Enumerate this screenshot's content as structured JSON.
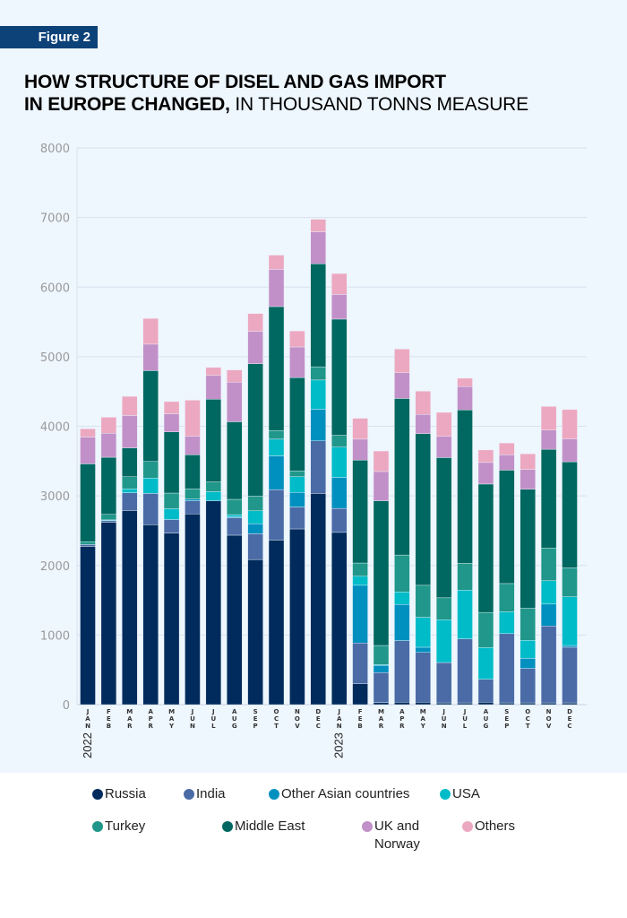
{
  "figure_label": "Figure 2",
  "title": {
    "bold": "HOW STRUCTURE OF DISEL AND GAS IMPORT IN EUROPE CHANGED,",
    "bold_line1": "HOW STRUCTURE OF DISEL AND GAS IMPORT",
    "bold_line2": "IN EUROPE CHANGED,",
    "light": " IN THOUSAND TONNS MEASURE"
  },
  "chart_data": {
    "type": "bar",
    "stacked": true,
    "title": "HOW STRUCTURE OF DISEL AND GAS IMPORT IN EUROPE CHANGED, IN THOUSAND TONNS MEASURE",
    "ylim": [
      0,
      8000
    ],
    "yticks": [
      "0",
      "1000",
      "2000",
      "3000",
      "4000",
      "5000",
      "6000",
      "7000",
      "8000"
    ],
    "grid": true,
    "legend_position": "bottom",
    "categories": [
      "JAN",
      "FEB",
      "MAR",
      "APR",
      "MAY",
      "JUN",
      "JUL",
      "AUG",
      "SEP",
      "OCT",
      "NOV",
      "DEC",
      "JAN",
      "FEB",
      "MAR",
      "APR",
      "MAY",
      "JUN",
      "JUL",
      "AUG",
      "SEP",
      "OCT",
      "NOV",
      "DEC"
    ],
    "year_labels": [
      {
        "label": "2022",
        "category_index": 0
      },
      {
        "label": "2023",
        "category_index": 12
      }
    ],
    "series": [
      {
        "name": "Russia",
        "color": "#002b5c",
        "values": [
          2270,
          2620,
          2790,
          2585,
          2465,
          2740,
          2930,
          2435,
          2085,
          2365,
          2525,
          3035,
          2475,
          300,
          30,
          35,
          35,
          25,
          25,
          35,
          25,
          25,
          25,
          25
        ]
      },
      {
        "name": "India",
        "color": "#4a6ba6",
        "values": [
          30,
          25,
          255,
          450,
          195,
          190,
          0,
          250,
          370,
          725,
          315,
          755,
          345,
          585,
          430,
          885,
          715,
          580,
          920,
          330,
          995,
          495,
          1105,
          800
        ]
      },
      {
        "name": "Other Asian countries",
        "color": "#0090c0",
        "values": [
          0,
          0,
          0,
          0,
          0,
          25,
          0,
          15,
          145,
          485,
          210,
          455,
          445,
          830,
          105,
          520,
          75,
          0,
          0,
          0,
          0,
          145,
          315,
          25
        ]
      },
      {
        "name": "USA",
        "color": "#00bcc8",
        "values": [
          0,
          10,
          55,
          220,
          155,
          0,
          130,
          30,
          185,
          240,
          225,
          420,
          435,
          130,
          10,
          180,
          430,
          615,
          700,
          455,
          315,
          260,
          335,
          700
        ]
      },
      {
        "name": "Turkey",
        "color": "#20978a",
        "values": [
          40,
          80,
          175,
          240,
          225,
          145,
          140,
          220,
          210,
          125,
          85,
          190,
          170,
          190,
          275,
          530,
          460,
          315,
          385,
          505,
          405,
          460,
          470,
          415
        ]
      },
      {
        "name": "Middle East",
        "color": "#006860",
        "values": [
          1120,
          820,
          415,
          1305,
          880,
          490,
          1190,
          1115,
          1905,
          1780,
          1340,
          1480,
          1670,
          1480,
          2080,
          2250,
          2180,
          2015,
          2205,
          1845,
          1630,
          1710,
          1420,
          1525
        ]
      },
      {
        "name": "UK and Norway",
        "color": "#c290c8",
        "values": [
          385,
          345,
          465,
          380,
          260,
          265,
          340,
          570,
          465,
          535,
          440,
          460,
          355,
          300,
          420,
          370,
          275,
          305,
          335,
          310,
          220,
          285,
          275,
          330
        ]
      },
      {
        "name": "Others",
        "color": "#eca8c0",
        "values": [
          120,
          230,
          275,
          370,
          175,
          520,
          115,
          175,
          255,
          205,
          230,
          180,
          300,
          300,
          295,
          340,
          335,
          345,
          120,
          180,
          170,
          225,
          340,
          420
        ]
      }
    ]
  },
  "legend": [
    {
      "label": "Russia",
      "color": "#002b5c"
    },
    {
      "label": "India",
      "color": "#4a6ba6"
    },
    {
      "label": "Other Asian countries",
      "color": "#0090c0"
    },
    {
      "label": "USA",
      "color": "#00bcc8"
    },
    {
      "label": "Turkey",
      "color": "#20978a"
    },
    {
      "label": "Middle East",
      "color": "#006860"
    },
    {
      "label": "UK and Norway",
      "color": "#c290c8"
    },
    {
      "label": "Others",
      "color": "#eca8c0"
    }
  ],
  "colors": {
    "panel_background": "#eef6fe",
    "figure_label_background": "#0d4279",
    "gridline": "#d8e2ee",
    "tick_label": "#9a9a9a"
  }
}
